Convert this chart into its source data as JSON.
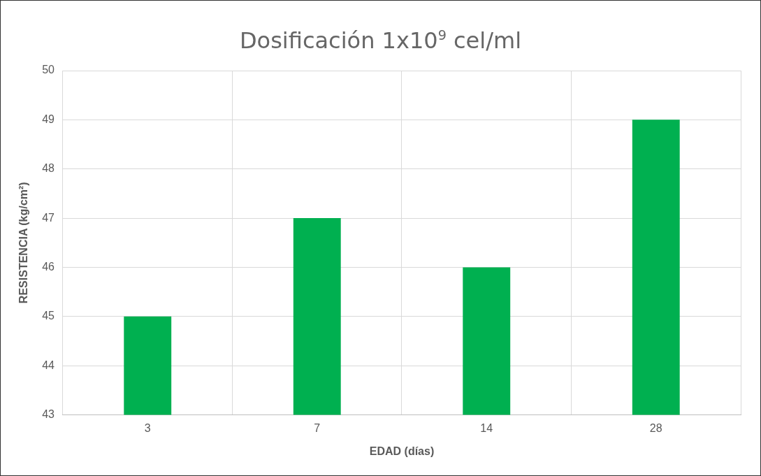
{
  "chart_data": {
    "type": "bar",
    "title": "Dosificación 1x10$^{9}$ cel/ml",
    "xlabel": "EDAD (días)",
    "ylabel": "RESISTENCIA (kg/cm²)",
    "categories": [
      "3",
      "7",
      "14",
      "28"
    ],
    "values": [
      45,
      47,
      46,
      49
    ],
    "color": "#00b050",
    "ylim": [
      43,
      50
    ],
    "yticks": [
      43,
      44,
      45,
      46,
      47,
      48,
      49,
      50
    ],
    "grid": true
  }
}
